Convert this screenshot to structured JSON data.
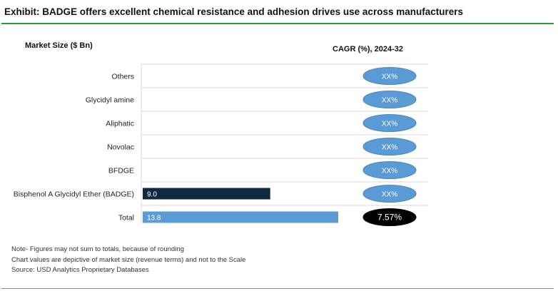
{
  "title": "Exhibit: BADGE offers excellent chemical resistance and adhesion drives use across manufacturers",
  "headers": {
    "left": "Market Size ($ Bn)",
    "right": "CAGR (%), 2024-32"
  },
  "notes": [
    "Note- Figures may not sum to totals, because of rounding",
    "Chart values are depictive of market size (revenue terms) and not to the Scale",
    "Source: USD Analytics Proprietary Databases"
  ],
  "colors": {
    "badge_bar": "#0e2841",
    "total_bar": "#5b9bd5",
    "pill_fill": "#5b9bd5",
    "pill_total_fill": "#000000",
    "accent_rule": "#2e9a3c"
  },
  "chart_data": {
    "type": "bar",
    "orientation": "horizontal",
    "categories": [
      "Others",
      "Glycidyl amine",
      "Aliphatic",
      "Novolac",
      "BFDGE",
      "Bisphenol A Glycidyl Ether (BADGE)",
      "Total"
    ],
    "values": [
      null,
      null,
      null,
      null,
      null,
      9.0,
      13.8
    ],
    "value_labels": [
      "",
      "",
      "",
      "",
      "",
      "9.0",
      "13.8"
    ],
    "cagr": [
      "XX%",
      "XX%",
      "XX%",
      "XX%",
      "XX%",
      "XX%",
      "7.57%"
    ],
    "xlim": [
      0,
      16.9
    ],
    "grid": "horizontal separators"
  }
}
